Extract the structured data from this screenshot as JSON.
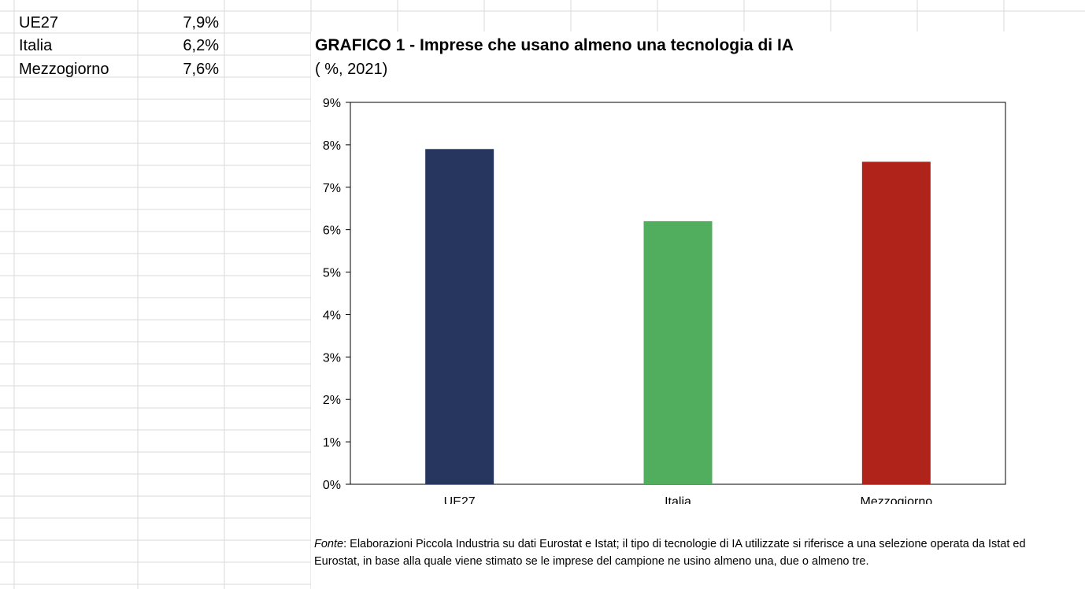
{
  "sheet": {
    "rows": [
      {
        "label": "UE27",
        "value": "7,9%"
      },
      {
        "label": "Italia",
        "value": "6,2%"
      },
      {
        "label": "Mezzogiorno",
        "value": "7,6%"
      }
    ]
  },
  "chart_data": {
    "type": "bar",
    "title": "GRAFICO 1 - Imprese che usano almeno una tecnologia di IA",
    "subtitle": "( %, 2021)",
    "categories": [
      "UE27",
      "Italia",
      "Mezzogiorno"
    ],
    "values": [
      7.9,
      6.2,
      7.6
    ],
    "colors": [
      "#27365f",
      "#52ae5f",
      "#b0231b"
    ],
    "ylim": [
      0,
      9
    ],
    "yticks": [
      "0%",
      "1%",
      "2%",
      "3%",
      "4%",
      "5%",
      "6%",
      "7%",
      "8%",
      "9%"
    ],
    "grid": false,
    "legend": "none",
    "xlabel": "",
    "ylabel": ""
  },
  "note": {
    "label": "Fonte",
    "text": ": Elaborazioni Piccola Industria su dati Eurostat e Istat; il tipo di tecnologie di IA utilizzate si riferisce a una selezione operata da Istat ed Eurostat, in base alla quale viene stimato se le imprese del campione ne usino almeno una, due o almeno tre."
  }
}
